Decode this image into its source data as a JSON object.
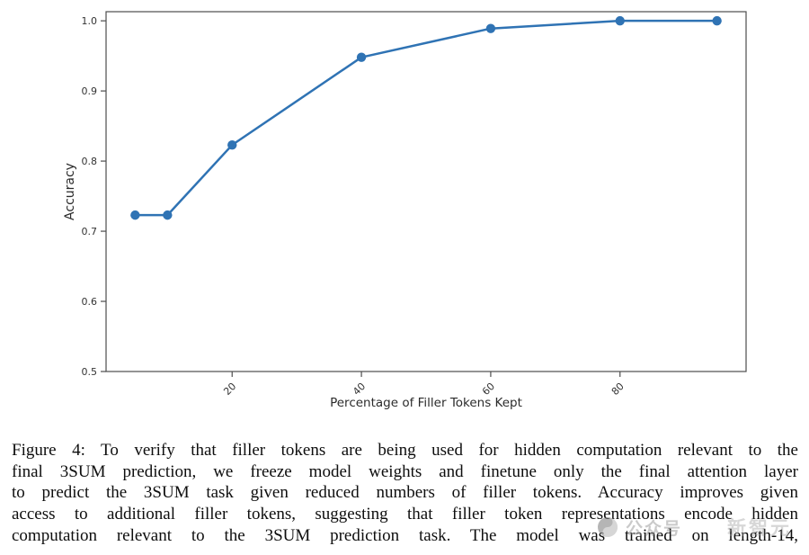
{
  "chart_data": {
    "type": "line",
    "title": "",
    "xlabel": "Percentage of Filler Tokens Kept",
    "ylabel": "Accuracy",
    "x": [
      5,
      10,
      20,
      40,
      60,
      80,
      95
    ],
    "y": [
      0.723,
      0.723,
      0.823,
      0.948,
      0.989,
      1.0,
      1.0
    ],
    "xlim": [
      0.5,
      99.5
    ],
    "ylim": [
      0.5,
      1.013
    ],
    "xticks": [
      20,
      40,
      60,
      80
    ],
    "yticks": [
      0.5,
      0.6,
      0.7,
      0.8,
      0.9,
      1.0
    ],
    "xtick_rotation": 45,
    "grid": false,
    "legend_position": "none",
    "line_color": "#2f73b4",
    "marker": "circle",
    "axis_color": "#4d4d4d",
    "tick_label_color": "#333333"
  },
  "figure": {
    "caption_lines": [
      "Figure 4: To verify that filler tokens are being used for hidden computation relevant to the",
      "final 3SUM prediction, we freeze model weights and finetune only the final attention layer",
      "to predict the 3SUM task given reduced numbers of filler tokens. Accuracy improves given",
      "access to additional filler tokens, suggesting that filler token representations encode hidden",
      "computation relevant to the 3SUM prediction task. The model was trained on length-14,"
    ]
  },
  "watermark": {
    "logo_icon": "yin-yang-circle",
    "label": "公众号",
    "name": "新智元"
  }
}
